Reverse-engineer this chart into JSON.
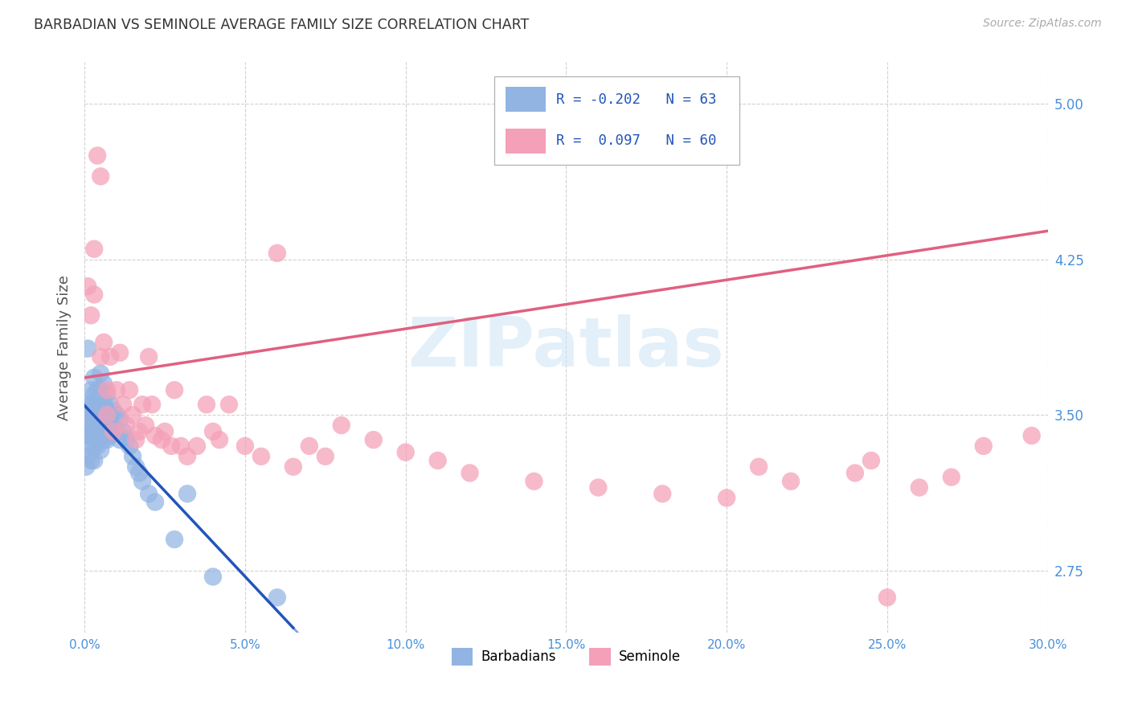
{
  "title": "BARBADIAN VS SEMINOLE AVERAGE FAMILY SIZE CORRELATION CHART",
  "source": "Source: ZipAtlas.com",
  "ylabel": "Average Family Size",
  "xlim": [
    0.0,
    0.3
  ],
  "ylim": [
    2.45,
    5.2
  ],
  "right_yticks": [
    2.75,
    3.5,
    4.25,
    5.0
  ],
  "xtick_vals": [
    0.0,
    0.05,
    0.1,
    0.15,
    0.2,
    0.25,
    0.3
  ],
  "xtick_labels": [
    "0.0%",
    "5.0%",
    "10.0%",
    "15.0%",
    "20.0%",
    "25.0%",
    "30.0%"
  ],
  "watermark": "ZIPatlas",
  "legend_line1": "R = -0.202   N = 63",
  "legend_line2": "R =  0.097   N = 60",
  "barbadian_color": "#92b4e3",
  "seminole_color": "#f4a0b8",
  "barbadian_line_color": "#2255bb",
  "seminole_line_color": "#e06080",
  "title_color": "#333333",
  "axis_color": "#4a90d9",
  "grid_color": "#cccccc",
  "barbadian_x": [
    0.0005,
    0.0005,
    0.001,
    0.001,
    0.001,
    0.001,
    0.001,
    0.002,
    0.002,
    0.002,
    0.002,
    0.002,
    0.002,
    0.002,
    0.003,
    0.003,
    0.003,
    0.003,
    0.003,
    0.003,
    0.003,
    0.003,
    0.004,
    0.004,
    0.004,
    0.004,
    0.004,
    0.005,
    0.005,
    0.005,
    0.005,
    0.005,
    0.005,
    0.006,
    0.006,
    0.006,
    0.006,
    0.007,
    0.007,
    0.007,
    0.007,
    0.008,
    0.008,
    0.008,
    0.009,
    0.009,
    0.01,
    0.01,
    0.011,
    0.011,
    0.012,
    0.013,
    0.014,
    0.015,
    0.016,
    0.017,
    0.018,
    0.02,
    0.022,
    0.028,
    0.032,
    0.04,
    0.06
  ],
  "barbadian_y": [
    3.4,
    3.25,
    3.82,
    3.55,
    3.48,
    3.4,
    3.3,
    3.62,
    3.55,
    3.5,
    3.45,
    3.4,
    3.35,
    3.28,
    3.68,
    3.6,
    3.55,
    3.5,
    3.45,
    3.4,
    3.35,
    3.28,
    3.62,
    3.55,
    3.48,
    3.42,
    3.35,
    3.7,
    3.62,
    3.55,
    3.48,
    3.4,
    3.33,
    3.65,
    3.55,
    3.48,
    3.38,
    3.6,
    3.52,
    3.45,
    3.38,
    3.55,
    3.48,
    3.4,
    3.52,
    3.44,
    3.5,
    3.42,
    3.48,
    3.38,
    3.42,
    3.38,
    3.35,
    3.3,
    3.25,
    3.22,
    3.18,
    3.12,
    3.08,
    2.9,
    3.12,
    2.72,
    2.62
  ],
  "seminole_x": [
    0.001,
    0.002,
    0.003,
    0.003,
    0.004,
    0.005,
    0.005,
    0.006,
    0.007,
    0.007,
    0.008,
    0.009,
    0.01,
    0.011,
    0.012,
    0.013,
    0.014,
    0.015,
    0.016,
    0.017,
    0.018,
    0.019,
    0.02,
    0.021,
    0.022,
    0.024,
    0.025,
    0.027,
    0.028,
    0.03,
    0.032,
    0.035,
    0.038,
    0.04,
    0.042,
    0.045,
    0.05,
    0.055,
    0.06,
    0.065,
    0.07,
    0.075,
    0.08,
    0.09,
    0.1,
    0.11,
    0.12,
    0.14,
    0.16,
    0.18,
    0.2,
    0.21,
    0.22,
    0.24,
    0.245,
    0.25,
    0.26,
    0.27,
    0.28,
    0.295
  ],
  "seminole_y": [
    4.12,
    3.98,
    4.3,
    4.08,
    4.75,
    4.65,
    3.78,
    3.85,
    3.62,
    3.5,
    3.78,
    3.42,
    3.62,
    3.8,
    3.55,
    3.45,
    3.62,
    3.5,
    3.38,
    3.42,
    3.55,
    3.45,
    3.78,
    3.55,
    3.4,
    3.38,
    3.42,
    3.35,
    3.62,
    3.35,
    3.3,
    3.35,
    3.55,
    3.42,
    3.38,
    3.55,
    3.35,
    3.3,
    4.28,
    3.25,
    3.35,
    3.3,
    3.45,
    3.38,
    3.32,
    3.28,
    3.22,
    3.18,
    3.15,
    3.12,
    3.1,
    3.25,
    3.18,
    3.22,
    3.28,
    2.62,
    3.15,
    3.2,
    3.35,
    3.4
  ],
  "barb_line_x_solid_start": 0.0,
  "barb_line_x_solid_end": 0.065,
  "barb_line_x_dash_start": 0.065,
  "barb_line_x_dash_end": 0.3,
  "semi_line_x_start": 0.0,
  "semi_line_x_end": 0.3
}
